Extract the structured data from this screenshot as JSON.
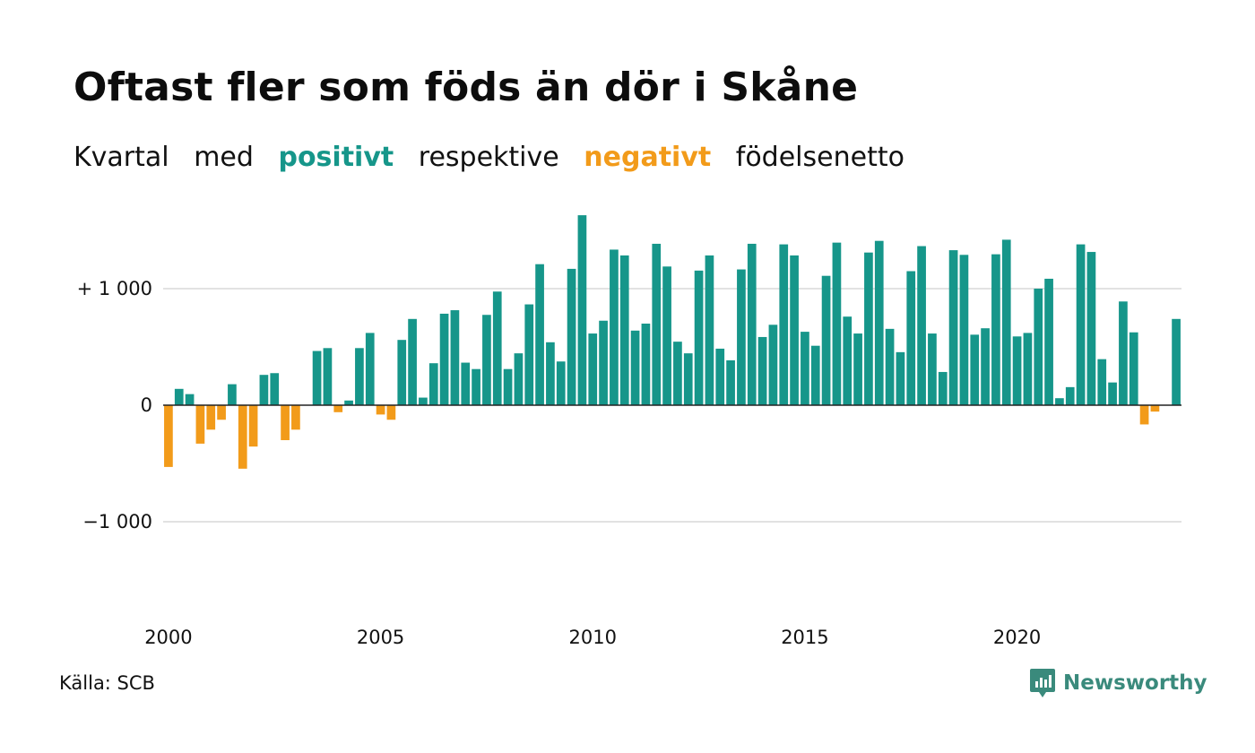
{
  "header": {
    "title": "Oftast fler som föds än dör i Skåne",
    "subtitle_parts": [
      "Kvartal",
      "med",
      "positivt",
      "respektive",
      "negativt",
      "födelsenetto"
    ]
  },
  "footer": {
    "source": "Källa: SCB",
    "brand": "Newsworthy"
  },
  "colors": {
    "positive": "#16968a",
    "negative": "#f29b1a",
    "grid": "#e2e2e2",
    "zero_line": "#222222",
    "brand": "#3a8a7c"
  },
  "chart_data": {
    "type": "bar",
    "title": "Oftast fler som föds än dör i Skåne",
    "subtitle": "Kvartal med positivt respektive negativt födelsenetto",
    "xlabel": "",
    "ylabel": "",
    "ylim": [
      -1700,
      1700
    ],
    "yticks": [
      {
        "value": 1000,
        "label": "+ 1 000"
      },
      {
        "value": 0,
        "label": "0"
      },
      {
        "value": -1000,
        "label": "−1 000"
      }
    ],
    "xticks": [
      "2000",
      "2005",
      "2010",
      "2015",
      "2020"
    ],
    "start_year": 2000,
    "categories": [
      "2000K1",
      "2000K2",
      "2000K3",
      "2000K4",
      "2001K1",
      "2001K2",
      "2001K3",
      "2001K4",
      "2002K1",
      "2002K2",
      "2002K3",
      "2002K4",
      "2003K1",
      "2003K2",
      "2003K3",
      "2003K4",
      "2004K1",
      "2004K2",
      "2004K3",
      "2004K4",
      "2005K1",
      "2005K2",
      "2005K3",
      "2005K4",
      "2006K1",
      "2006K2",
      "2006K3",
      "2006K4",
      "2007K1",
      "2007K2",
      "2007K3",
      "2007K4",
      "2008K1",
      "2008K2",
      "2008K3",
      "2008K4",
      "2009K1",
      "2009K2",
      "2009K3",
      "2009K4",
      "2010K1",
      "2010K2",
      "2010K3",
      "2010K4",
      "2011K1",
      "2011K2",
      "2011K3",
      "2011K4",
      "2012K1",
      "2012K2",
      "2012K3",
      "2012K4",
      "2013K1",
      "2013K2",
      "2013K3",
      "2013K4",
      "2014K1",
      "2014K2",
      "2014K3",
      "2014K4",
      "2015K1",
      "2015K2",
      "2015K3",
      "2015K4",
      "2016K1",
      "2016K2",
      "2016K3",
      "2016K4",
      "2017K1",
      "2017K2",
      "2017K3",
      "2017K4",
      "2018K1",
      "2018K2",
      "2018K3",
      "2018K4",
      "2019K1",
      "2019K2",
      "2019K3",
      "2019K4",
      "2020K1",
      "2020K2",
      "2020K3",
      "2020K4",
      "2021K1",
      "2021K2",
      "2021K3",
      "2021K4",
      "2022K1",
      "2022K2",
      "2022K3",
      "2022K4",
      "2023K1",
      "2023K2",
      "2023K3",
      "2023K4"
    ],
    "values": [
      -530,
      140,
      95,
      -330,
      -210,
      -125,
      180,
      -545,
      -355,
      260,
      275,
      -300,
      -210,
      0,
      465,
      490,
      -60,
      40,
      490,
      620,
      -80,
      -125,
      560,
      740,
      65,
      360,
      785,
      815,
      365,
      310,
      775,
      975,
      310,
      445,
      865,
      1210,
      540,
      375,
      1170,
      1630,
      615,
      725,
      1335,
      1285,
      640,
      700,
      1385,
      1190,
      545,
      445,
      1155,
      1285,
      485,
      385,
      1165,
      1385,
      585,
      690,
      1380,
      1285,
      630,
      510,
      1110,
      1395,
      760,
      615,
      1310,
      1410,
      655,
      455,
      1150,
      1365,
      615,
      285,
      1330,
      1290,
      605,
      660,
      1295,
      1420,
      590,
      620,
      1000,
      1085,
      60,
      155,
      1380,
      1315,
      395,
      195,
      890,
      625,
      -165,
      -55,
      0,
      740
    ]
  }
}
